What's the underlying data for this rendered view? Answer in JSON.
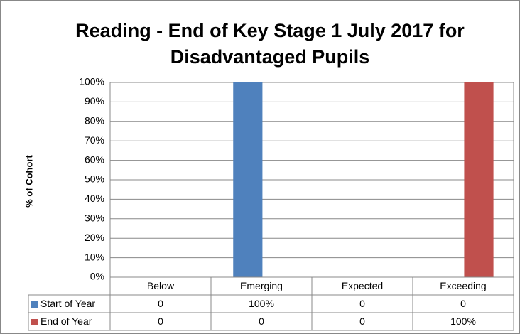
{
  "chart_data": {
    "type": "bar",
    "title": [
      "Reading - End of Key Stage 1 July 2017 for",
      "Disadvantaged Pupils"
    ],
    "y_label": "% of Cohort",
    "categories": [
      "Below",
      "Emerging",
      "Expected",
      "Exceeding"
    ],
    "series": [
      {
        "name": "Start of Year",
        "color": "#4f81bd",
        "values": [
          0,
          100,
          0,
          0
        ],
        "value_labels": [
          "0",
          "100%",
          "0",
          "0"
        ]
      },
      {
        "name": "End of Year",
        "color": "#c0504d",
        "values": [
          0,
          0,
          0,
          100
        ],
        "value_labels": [
          "0",
          "0",
          "0",
          "100%"
        ]
      }
    ],
    "ylim": [
      0,
      100
    ],
    "yticks": [
      {
        "value": 0,
        "label": "0%"
      },
      {
        "value": 10,
        "label": "10%"
      },
      {
        "value": 20,
        "label": "20%"
      },
      {
        "value": 30,
        "label": "30%"
      },
      {
        "value": 40,
        "label": "40%"
      },
      {
        "value": 50,
        "label": "50%"
      },
      {
        "value": 60,
        "label": "60%"
      },
      {
        "value": 70,
        "label": "70%"
      },
      {
        "value": 80,
        "label": "80%"
      },
      {
        "value": 90,
        "label": "90%"
      },
      {
        "value": 100,
        "label": "100%"
      }
    ],
    "grid": true
  }
}
